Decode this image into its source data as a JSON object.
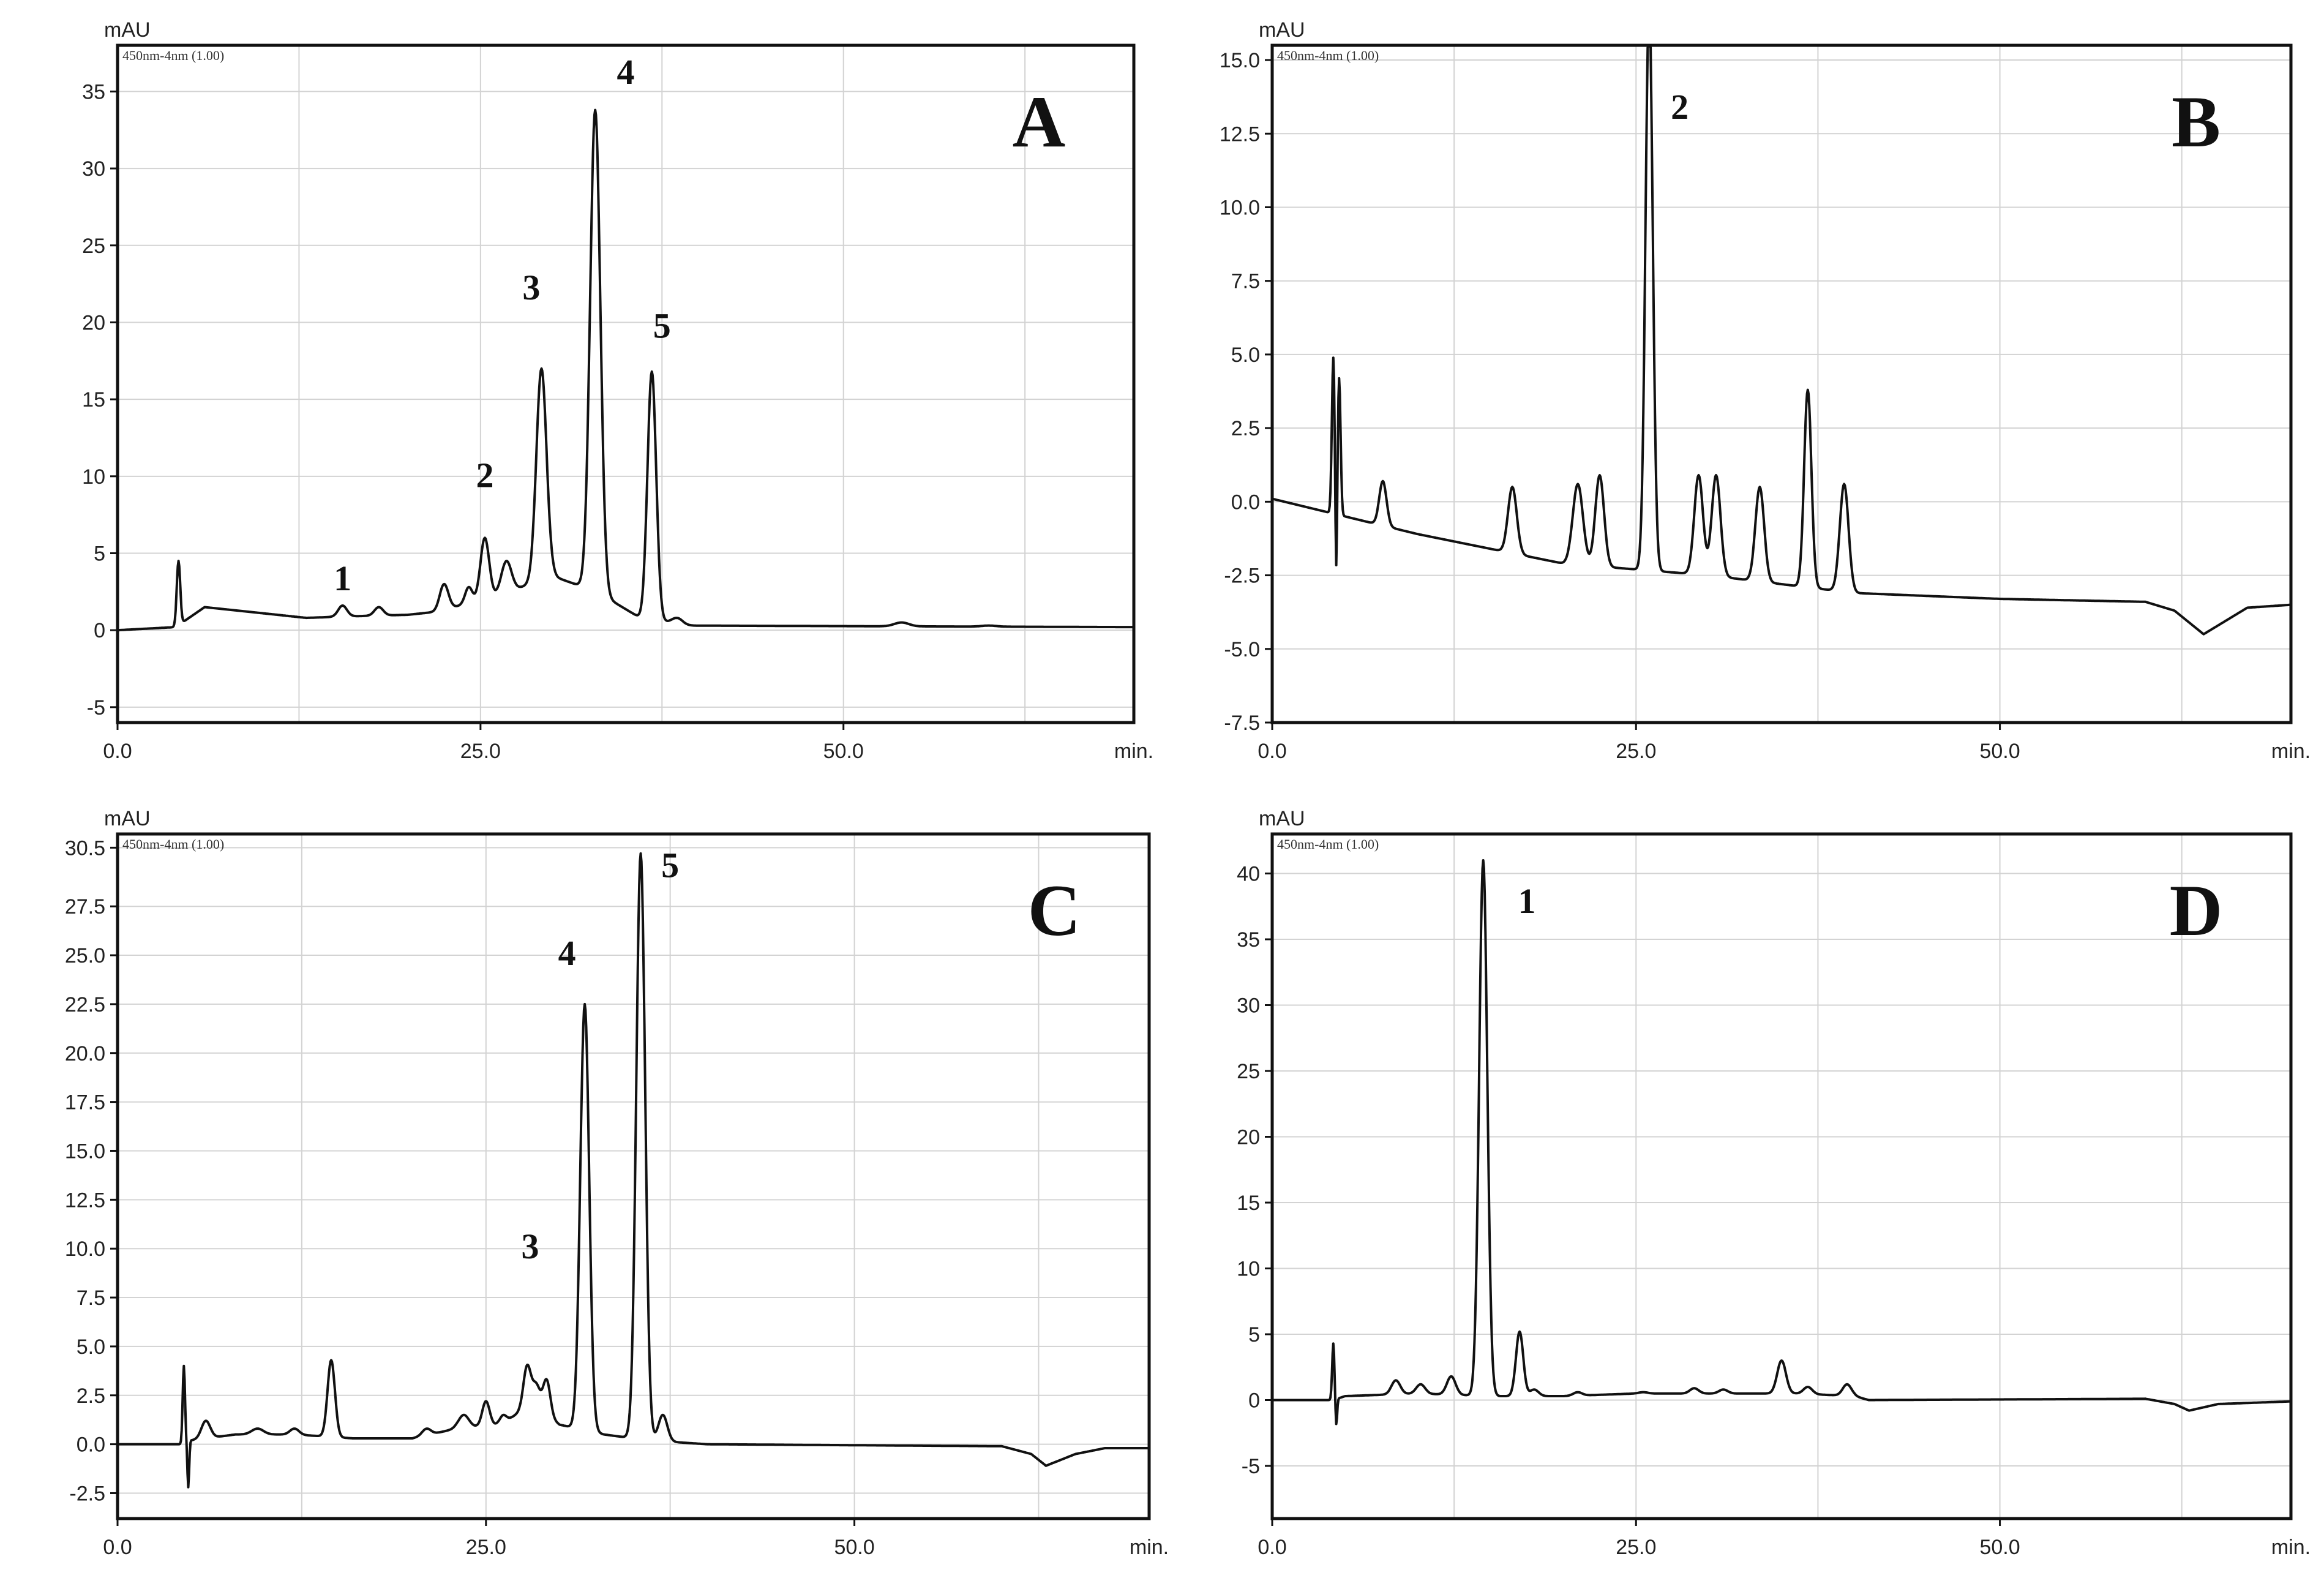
{
  "chart_data": [
    {
      "type": "line",
      "panel": "A",
      "header": "450nm-4nm (1.00)",
      "ylabel": "mAU",
      "xlabel": "min.",
      "xlim": [
        0,
        70
      ],
      "ylim": [
        -6,
        38
      ],
      "xticks": [
        0.0,
        25.0,
        50.0
      ],
      "xtick_labels": [
        "0.0",
        "25.0",
        "50.0"
      ],
      "yticks": [
        -5,
        0,
        5,
        10,
        15,
        20,
        25,
        30,
        35
      ],
      "ytick_labels": [
        "-5",
        "0",
        "5",
        "10",
        "15",
        "20",
        "25",
        "30",
        "35"
      ],
      "grid": true,
      "baseline": [
        [
          0,
          0
        ],
        [
          4.0,
          0.2
        ],
        [
          6,
          1.5
        ],
        [
          10,
          1.1
        ],
        [
          13,
          0.8
        ],
        [
          16,
          0.9
        ],
        [
          20,
          1.0
        ],
        [
          22,
          1.2
        ],
        [
          26,
          2.2
        ],
        [
          30,
          3.5
        ],
        [
          33,
          2.5
        ],
        [
          36,
          0.8
        ],
        [
          39,
          0.3
        ],
        [
          70,
          0.2
        ]
      ],
      "peaks": [
        {
          "x": 4.2,
          "y": 4.5,
          "w": 0.12
        },
        {
          "x": 15.5,
          "y": 1.6,
          "w": 0.3
        },
        {
          "x": 18.0,
          "y": 1.5,
          "w": 0.3
        },
        {
          "x": 22.5,
          "y": 3.0,
          "w": 0.3
        },
        {
          "x": 24.2,
          "y": 2.8,
          "w": 0.25
        },
        {
          "x": 25.3,
          "y": 6.0,
          "w": 0.3
        },
        {
          "x": 26.8,
          "y": 4.5,
          "w": 0.35
        },
        {
          "x": 29.2,
          "y": 17.0,
          "w": 0.35
        },
        {
          "x": 32.9,
          "y": 33.8,
          "w": 0.35
        },
        {
          "x": 36.8,
          "y": 16.8,
          "w": 0.3
        },
        {
          "x": 38.5,
          "y": 0.8,
          "w": 0.4
        },
        {
          "x": 54.0,
          "y": 0.5,
          "w": 0.5
        },
        {
          "x": 60.0,
          "y": 0.3,
          "w": 0.5
        }
      ],
      "labels": [
        {
          "text": "1",
          "x": 15.5,
          "y": 2.6
        },
        {
          "text": "2",
          "x": 25.3,
          "y": 9.3
        },
        {
          "text": "3",
          "x": 28.5,
          "y": 21.5
        },
        {
          "text": "4",
          "x": 35.0,
          "y": 35.5
        },
        {
          "text": "5",
          "x": 37.5,
          "y": 19.0
        }
      ]
    },
    {
      "type": "line",
      "panel": "B",
      "header": "450nm-4nm (1.00)",
      "ylabel": "mAU",
      "xlabel": "min.",
      "xlim": [
        0,
        70
      ],
      "ylim": [
        -7.5,
        15.5
      ],
      "xticks": [
        0.0,
        25.0,
        50.0
      ],
      "xtick_labels": [
        "0.0",
        "25.0",
        "50.0"
      ],
      "yticks": [
        -7.5,
        -5.0,
        -2.5,
        0.0,
        2.5,
        5.0,
        7.5,
        10.0,
        12.5,
        15.0
      ],
      "ytick_labels": [
        "-7.5",
        "-5.0",
        "-2.5",
        "0.0",
        "2.5",
        "5.0",
        "7.5",
        "10.0",
        "12.5",
        "15.0"
      ],
      "grid": true,
      "baseline": [
        [
          0,
          0.1
        ],
        [
          5,
          -0.5
        ],
        [
          10,
          -1.1
        ],
        [
          15,
          -1.6
        ],
        [
          20,
          -2.1
        ],
        [
          25,
          -2.3
        ],
        [
          30,
          -2.5
        ],
        [
          35,
          -2.8
        ],
        [
          40,
          -3.1
        ],
        [
          50,
          -3.3
        ],
        [
          60,
          -3.4
        ],
        [
          62,
          -3.7
        ],
        [
          64,
          -4.5
        ],
        [
          65,
          -4.2
        ],
        [
          67,
          -3.6
        ],
        [
          70,
          -3.5
        ]
      ],
      "peaks": [
        {
          "x": 4.2,
          "y": 4.9,
          "w": 0.1
        },
        {
          "x": 4.6,
          "y": 4.2,
          "w": 0.1
        },
        {
          "x": 7.6,
          "y": 0.7,
          "w": 0.25
        },
        {
          "x": 16.5,
          "y": 0.5,
          "w": 0.3
        },
        {
          "x": 21.0,
          "y": 0.6,
          "w": 0.35
        },
        {
          "x": 22.5,
          "y": 0.9,
          "w": 0.3
        },
        {
          "x": 25.9,
          "y": 16.9,
          "w": 0.25
        },
        {
          "x": 29.3,
          "y": 0.9,
          "w": 0.3
        },
        {
          "x": 30.5,
          "y": 0.9,
          "w": 0.3
        },
        {
          "x": 33.5,
          "y": 0.5,
          "w": 0.3
        },
        {
          "x": 36.8,
          "y": 3.8,
          "w": 0.25
        },
        {
          "x": 39.3,
          "y": 0.6,
          "w": 0.3
        }
      ],
      "dips": [
        {
          "x": 4.4,
          "y": -3.5
        }
      ],
      "labels": [
        {
          "text": "2",
          "x": 28.0,
          "y": 13.0
        }
      ]
    },
    {
      "type": "line",
      "panel": "C",
      "header": "450nm-4nm (1.00)",
      "ylabel": "mAU",
      "xlabel": "min.",
      "xlim": [
        0,
        70
      ],
      "ylim": [
        -3.8,
        31.2
      ],
      "xticks": [
        0.0,
        25.0,
        50.0
      ],
      "xtick_labels": [
        "0.0",
        "25.0",
        "50.0"
      ],
      "yticks": [
        -2.5,
        0.0,
        2.5,
        5.0,
        7.5,
        10.0,
        12.5,
        15.0,
        17.5,
        20.0,
        22.5,
        25.0,
        27.5,
        30.5
      ],
      "ytick_labels": [
        "-2.5",
        "0.0",
        "2.5",
        "5.0",
        "7.5",
        "10.0",
        "12.5",
        "15.0",
        "17.5",
        "20.0",
        "22.5",
        "25.0",
        "27.5",
        "30.5"
      ],
      "grid": true,
      "baseline": [
        [
          0,
          0
        ],
        [
          4.5,
          0
        ],
        [
          5,
          0.2
        ],
        [
          8,
          0.5
        ],
        [
          12,
          0.5
        ],
        [
          16,
          0.3
        ],
        [
          20,
          0.3
        ],
        [
          23,
          0.8
        ],
        [
          26,
          1.0
        ],
        [
          28,
          2.0
        ],
        [
          30,
          1.0
        ],
        [
          33,
          0.5
        ],
        [
          36,
          0.2
        ],
        [
          40,
          0
        ],
        [
          60,
          -0.1
        ],
        [
          62,
          -0.5
        ],
        [
          63,
          -1.1
        ],
        [
          65,
          -0.5
        ],
        [
          67,
          -0.2
        ],
        [
          70,
          -0.2
        ]
      ],
      "peaks": [
        {
          "x": 4.5,
          "y": 4.0,
          "w": 0.08
        },
        {
          "x": 6.0,
          "y": 1.2,
          "w": 0.3
        },
        {
          "x": 9.5,
          "y": 0.8,
          "w": 0.4
        },
        {
          "x": 12.0,
          "y": 0.8,
          "w": 0.3
        },
        {
          "x": 14.5,
          "y": 4.3,
          "w": 0.25
        },
        {
          "x": 21.0,
          "y": 0.8,
          "w": 0.3
        },
        {
          "x": 23.5,
          "y": 1.5,
          "w": 0.35
        },
        {
          "x": 25.0,
          "y": 2.2,
          "w": 0.25
        },
        {
          "x": 26.2,
          "y": 1.5,
          "w": 0.25
        },
        {
          "x": 27.8,
          "y": 4.0,
          "w": 0.25
        },
        {
          "x": 28.4,
          "y": 3.0,
          "w": 0.25
        },
        {
          "x": 29.1,
          "y": 3.3,
          "w": 0.25
        },
        {
          "x": 31.7,
          "y": 22.5,
          "w": 0.3
        },
        {
          "x": 35.5,
          "y": 30.2,
          "w": 0.3
        },
        {
          "x": 37.0,
          "y": 1.5,
          "w": 0.3
        }
      ],
      "dips": [
        {
          "x": 4.8,
          "y": -2.2
        }
      ],
      "labels": [
        {
          "text": "3",
          "x": 28.0,
          "y": 9.5
        },
        {
          "text": "4",
          "x": 30.5,
          "y": 24.5
        },
        {
          "text": "5",
          "x": 37.5,
          "y": 29.0
        }
      ]
    },
    {
      "type": "line",
      "panel": "D",
      "header": "450nm-4nm (1.00)",
      "ylabel": "mAU",
      "xlabel": "min.",
      "xlim": [
        0,
        70
      ],
      "ylim": [
        -9,
        43
      ],
      "xticks": [
        0.0,
        25.0,
        50.0
      ],
      "xtick_labels": [
        "0.0",
        "25.0",
        "50.0"
      ],
      "yticks": [
        -5,
        0,
        5,
        10,
        15,
        20,
        25,
        30,
        35,
        40
      ],
      "ytick_labels": [
        "-5",
        "0",
        "5",
        "10",
        "15",
        "20",
        "25",
        "30",
        "35",
        "40"
      ],
      "grid": true,
      "baseline": [
        [
          0,
          0
        ],
        [
          4.2,
          0
        ],
        [
          5,
          0.3
        ],
        [
          10,
          0.5
        ],
        [
          15,
          0.3
        ],
        [
          20,
          0.3
        ],
        [
          25,
          0.5
        ],
        [
          30,
          0.5
        ],
        [
          36,
          0.5
        ],
        [
          40,
          0.3
        ],
        [
          41,
          0
        ],
        [
          60,
          0.1
        ],
        [
          62,
          -0.3
        ],
        [
          63,
          -0.8
        ],
        [
          65,
          -0.3
        ],
        [
          70,
          -0.1
        ]
      ],
      "peaks": [
        {
          "x": 4.2,
          "y": 4.3,
          "w": 0.08
        },
        {
          "x": 8.5,
          "y": 1.5,
          "w": 0.3
        },
        {
          "x": 10.2,
          "y": 1.2,
          "w": 0.3
        },
        {
          "x": 12.3,
          "y": 1.8,
          "w": 0.3
        },
        {
          "x": 14.5,
          "y": 41.0,
          "w": 0.28
        },
        {
          "x": 17.0,
          "y": 5.2,
          "w": 0.25
        },
        {
          "x": 18.0,
          "y": 0.8,
          "w": 0.3
        },
        {
          "x": 21.0,
          "y": 0.6,
          "w": 0.3
        },
        {
          "x": 25.5,
          "y": 0.6,
          "w": 0.3
        },
        {
          "x": 29.0,
          "y": 0.9,
          "w": 0.3
        },
        {
          "x": 31.0,
          "y": 0.8,
          "w": 0.3
        },
        {
          "x": 35.0,
          "y": 3.0,
          "w": 0.3
        },
        {
          "x": 36.8,
          "y": 1.0,
          "w": 0.3
        },
        {
          "x": 39.5,
          "y": 1.2,
          "w": 0.3
        }
      ],
      "dips": [
        {
          "x": 4.4,
          "y": -2.0
        }
      ],
      "labels": [
        {
          "text": "1",
          "x": 17.5,
          "y": 37.0
        }
      ]
    }
  ]
}
